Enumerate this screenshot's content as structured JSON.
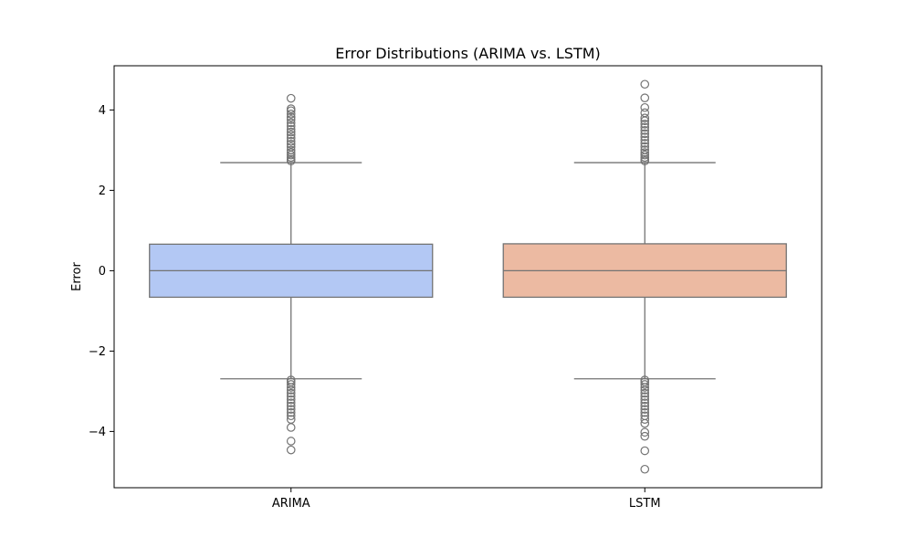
{
  "chart_data": {
    "type": "box",
    "title": "Error Distributions (ARIMA vs. LSTM)",
    "xlabel": "",
    "ylabel": "Error",
    "ylim": [
      -5.4,
      5.1
    ],
    "yticks": [
      {
        "value": 4,
        "label": "4"
      },
      {
        "value": 2,
        "label": "2"
      },
      {
        "value": 0,
        "label": "0"
      },
      {
        "value": -2,
        "label": "−2"
      },
      {
        "value": -4,
        "label": "−4"
      }
    ],
    "grid": false,
    "legend": "none",
    "categories": [
      "ARIMA",
      "LSTM"
    ],
    "series": [
      {
        "category": "ARIMA",
        "color": "#b3c8f4",
        "whisker_low": -2.69,
        "q1": -0.66,
        "median": 0.0,
        "q3": 0.66,
        "whisker_high": 2.69,
        "outliers": [
          4.29,
          4.03,
          3.98,
          3.9,
          3.82,
          3.76,
          3.68,
          3.6,
          3.52,
          3.45,
          3.38,
          3.3,
          3.22,
          3.15,
          3.08,
          3.0,
          2.94,
          2.88,
          2.82,
          2.77,
          2.73,
          -2.72,
          -2.77,
          -2.83,
          -2.9,
          -2.97,
          -3.05,
          -3.13,
          -3.21,
          -3.29,
          -3.37,
          -3.45,
          -3.53,
          -3.61,
          -3.7,
          -3.9,
          -4.24,
          -4.46
        ]
      },
      {
        "category": "LSTM",
        "color": "#ecbaa2",
        "whisker_low": -2.69,
        "q1": -0.66,
        "median": 0.0,
        "q3": 0.67,
        "whisker_high": 2.69,
        "outliers": [
          4.64,
          4.3,
          4.06,
          3.93,
          3.8,
          3.73,
          3.65,
          3.57,
          3.49,
          3.41,
          3.33,
          3.25,
          3.17,
          3.09,
          3.01,
          2.94,
          2.88,
          2.82,
          2.77,
          2.73,
          -2.72,
          -2.77,
          -2.83,
          -2.9,
          -2.97,
          -3.05,
          -3.13,
          -3.21,
          -3.29,
          -3.37,
          -3.45,
          -3.53,
          -3.61,
          -3.7,
          -3.8,
          -4.02,
          -4.12,
          -4.48,
          -4.94
        ]
      }
    ],
    "style": {
      "line_color": "#737373",
      "axis_color": "#000000"
    }
  }
}
